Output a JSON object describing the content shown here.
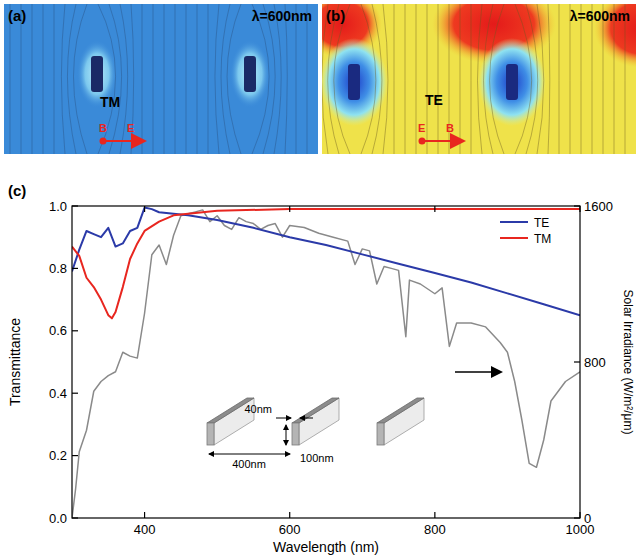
{
  "field_maps": [
    {
      "label": "(a)",
      "wavelength": "λ=600nm",
      "mode": "TM",
      "dot": "B",
      "arrow": "E"
    },
    {
      "label": "(b)",
      "wavelength": "λ=600nm",
      "mode": "TE",
      "dot": "E",
      "arrow": "B"
    }
  ],
  "chart_data": {
    "type": "line",
    "xlabel": "Wavelength (nm)",
    "ylabel": "Transmittance",
    "y2label": "Solar Irradiance (W/m²/μm)",
    "xlim": [
      300,
      1000
    ],
    "xticks": [
      400,
      600,
      800,
      1000
    ],
    "ylim": [
      0,
      1
    ],
    "yticks": [
      {
        "value": 0,
        "label": "0.0"
      },
      0.2,
      0.4,
      0.6,
      0.8,
      {
        "value": 1,
        "label": "1.0"
      }
    ],
    "y2lim": [
      0,
      1600
    ],
    "y2ticks": [
      0,
      800,
      1600
    ],
    "legend": "top-right",
    "series": [
      {
        "name": "TE",
        "color": "#2b3aa8",
        "x": [
          300,
          310,
          320,
          330,
          340,
          350,
          360,
          370,
          380,
          390,
          400,
          410,
          420,
          440,
          460,
          500,
          550,
          600,
          650,
          700,
          750,
          800,
          850,
          900,
          950,
          1000
        ],
        "values": [
          0.79,
          0.86,
          0.92,
          0.91,
          0.9,
          0.93,
          0.87,
          0.88,
          0.92,
          0.93,
          0.995,
          0.99,
          0.98,
          0.975,
          0.97,
          0.955,
          0.93,
          0.9,
          0.875,
          0.845,
          0.815,
          0.785,
          0.755,
          0.72,
          0.685,
          0.65
        ]
      },
      {
        "name": "TM",
        "color": "#e8261f",
        "x": [
          300,
          310,
          320,
          330,
          340,
          350,
          355,
          360,
          370,
          380,
          390,
          400,
          420,
          440,
          460,
          500,
          600,
          700,
          800,
          1000
        ],
        "values": [
          0.87,
          0.84,
          0.77,
          0.74,
          0.7,
          0.65,
          0.64,
          0.66,
          0.74,
          0.83,
          0.88,
          0.92,
          0.95,
          0.97,
          0.975,
          0.985,
          0.99,
          0.99,
          0.99,
          0.99
        ]
      },
      {
        "color": "#8a8a8a",
        "axis": "y2",
        "x": [
          300,
          305,
          310,
          320,
          330,
          340,
          350,
          360,
          370,
          380,
          390,
          400,
          410,
          420,
          430,
          440,
          450,
          460,
          470,
          480,
          490,
          500,
          510,
          520,
          530,
          540,
          550,
          560,
          570,
          580,
          590,
          600,
          620,
          640,
          660,
          680,
          690,
          700,
          710,
          720,
          730,
          740,
          750,
          760,
          765,
          780,
          800,
          810,
          820,
          830,
          850,
          870,
          890,
          900,
          910,
          920,
          930,
          940,
          950,
          960,
          980,
          1000
        ],
        "values": [
          0,
          150,
          340,
          450,
          650,
          700,
          730,
          750,
          850,
          830,
          820,
          1050,
          1350,
          1400,
          1300,
          1450,
          1550,
          1560,
          1570,
          1580,
          1520,
          1550,
          1500,
          1480,
          1540,
          1520,
          1510,
          1480,
          1500,
          1510,
          1440,
          1500,
          1490,
          1460,
          1440,
          1420,
          1300,
          1380,
          1370,
          1200,
          1290,
          1280,
          1270,
          930,
          1220,
          1200,
          1150,
          1180,
          880,
          1000,
          1000,
          980,
          900,
          850,
          700,
          500,
          280,
          260,
          400,
          600,
          700,
          750
        ]
      }
    ],
    "annotations": [
      {
        "text": "(c)"
      },
      {
        "text": "400nm"
      },
      {
        "text": "40nm"
      },
      {
        "text": "100nm"
      }
    ]
  }
}
